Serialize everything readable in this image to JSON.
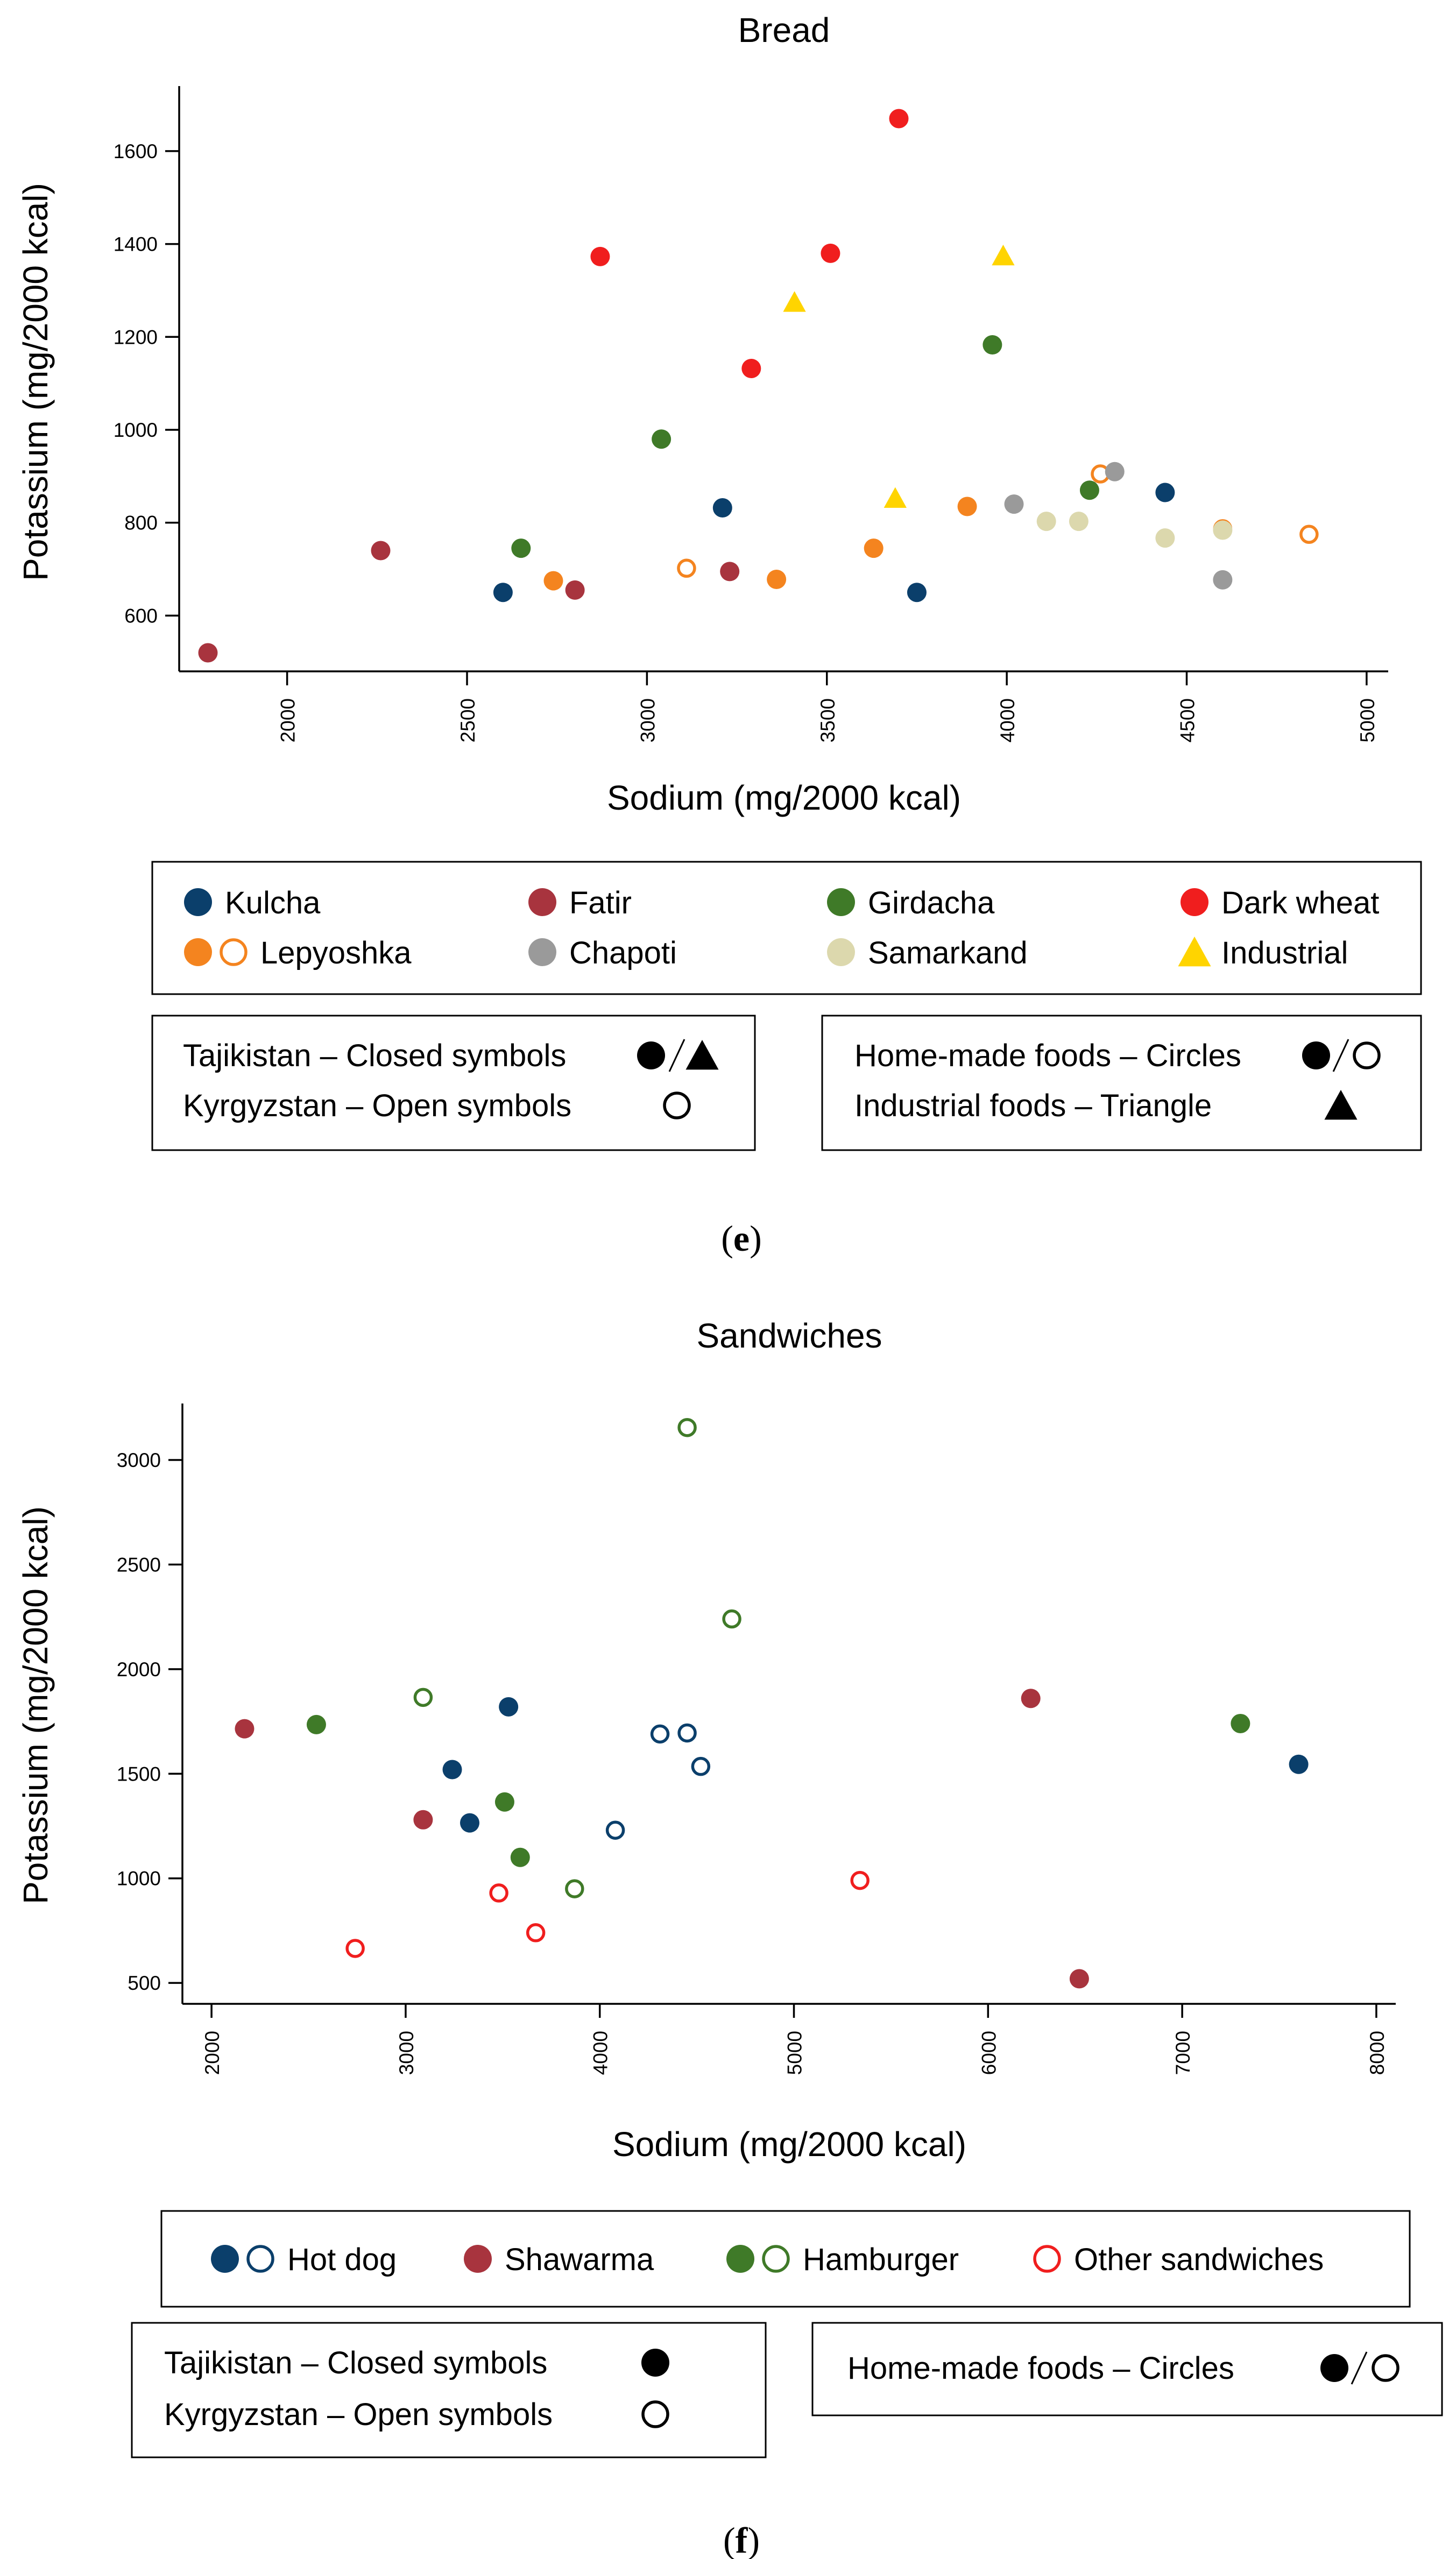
{
  "colors": {
    "kulcha": "#0b3f6b",
    "fatir": "#a8343e",
    "girdacha": "#3f7a28",
    "dark_wheat": "#f01e1e",
    "lepyoshka": "#f4841f",
    "chapoti": "#9a9a9a",
    "samarkand": "#dcd8ad",
    "industrial": "#ffd400",
    "hot_dog": "#0b3f6b",
    "shawarma": "#a8343e",
    "hamburger": "#3f7a28",
    "other": "#f01e1e"
  },
  "chart_data": [
    {
      "type": "scatter",
      "panel_label": "e",
      "title": "Bread",
      "xlabel": "Sodium (mg/2000 kcal)",
      "ylabel": "Potassium (mg/2000 kcal)",
      "xlim": [
        1700,
        5060
      ],
      "ylim": [
        480,
        1740
      ],
      "xticks": [
        "2000",
        "2500",
        "3000",
        "3500",
        "4000",
        "4500",
        "5000"
      ],
      "yticks": [
        "600",
        "800",
        "1000",
        "1200",
        "1400",
        "1600"
      ],
      "legend": [
        {
          "key": "kulcha",
          "label": "Kulcha",
          "symbols": [
            "closed-circle"
          ]
        },
        {
          "key": "fatir",
          "label": "Fatir",
          "symbols": [
            "closed-circle"
          ]
        },
        {
          "key": "girdacha",
          "label": "Girdacha",
          "symbols": [
            "closed-circle"
          ]
        },
        {
          "key": "dark_wheat",
          "label": "Dark wheat",
          "symbols": [
            "closed-circle"
          ]
        },
        {
          "key": "lepyoshka",
          "label": "Lepyoshka",
          "symbols": [
            "closed-circle",
            "open-circle"
          ]
        },
        {
          "key": "chapoti",
          "label": "Chapoti",
          "symbols": [
            "closed-circle"
          ]
        },
        {
          "key": "samarkand",
          "label": "Samarkand",
          "symbols": [
            "closed-circle"
          ]
        },
        {
          "key": "industrial",
          "label": "Industrial",
          "symbols": [
            "closed-triangle"
          ]
        }
      ],
      "notes": {
        "left": [
          {
            "text": "Tajikistan – Closed symbols",
            "symbols": [
              "closed-circle",
              "slash",
              "closed-triangle"
            ]
          },
          {
            "text": "Kyrgyzstan – Open symbols",
            "symbols": [
              "open-circle"
            ]
          }
        ],
        "right": [
          {
            "text": "Home-made foods – Circles",
            "symbols": [
              "closed-circle",
              "slash",
              "open-circle"
            ]
          },
          {
            "text": "Industrial foods – Triangle",
            "symbols": [
              "closed-triangle"
            ]
          }
        ]
      },
      "series": [
        {
          "name": "Kulcha",
          "key": "kulcha",
          "marker": "circle",
          "open": false,
          "points": [
            [
              2600,
              650
            ],
            [
              3210,
              832
            ],
            [
              3750,
              650
            ],
            [
              4440,
              865
            ]
          ]
        },
        {
          "name": "Fatir",
          "key": "fatir",
          "marker": "circle",
          "open": false,
          "points": [
            [
              1780,
              520
            ],
            [
              2260,
              740
            ],
            [
              2800,
              655
            ],
            [
              3230,
              695
            ]
          ]
        },
        {
          "name": "Girdacha",
          "key": "girdacha",
          "marker": "circle",
          "open": false,
          "points": [
            [
              2650,
              745
            ],
            [
              3040,
              980
            ],
            [
              3960,
              1183
            ],
            [
              4230,
              870
            ]
          ]
        },
        {
          "name": "Dark wheat",
          "key": "dark_wheat",
          "marker": "circle",
          "open": false,
          "points": [
            [
              2870,
              1373
            ],
            [
              3290,
              1132
            ],
            [
              3510,
              1380
            ],
            [
              3700,
              1670
            ]
          ]
        },
        {
          "name": "Lepyoshka (Tajikistan)",
          "key": "lepyoshka",
          "marker": "circle",
          "open": false,
          "points": [
            [
              2740,
              675
            ],
            [
              3360,
              678
            ],
            [
              3630,
              745
            ],
            [
              3890,
              835
            ]
          ]
        },
        {
          "name": "Lepyoshka (Kyrgyzstan)",
          "key": "lepyoshka",
          "marker": "circle",
          "open": true,
          "points": [
            [
              3110,
              702
            ],
            [
              4260,
              905
            ],
            [
              4600,
              787
            ],
            [
              4840,
              775
            ]
          ]
        },
        {
          "name": "Chapoti",
          "key": "chapoti",
          "marker": "circle",
          "open": false,
          "points": [
            [
              4020,
              840
            ],
            [
              4300,
              910
            ],
            [
              4600,
              677
            ]
          ]
        },
        {
          "name": "Samarkand",
          "key": "samarkand",
          "marker": "circle",
          "open": false,
          "points": [
            [
              4110,
              803
            ],
            [
              4200,
              803
            ],
            [
              4440,
              767
            ],
            [
              4600,
              784
            ]
          ]
        },
        {
          "name": "Industrial",
          "key": "industrial",
          "marker": "triangle",
          "open": false,
          "points": [
            [
              3410,
              1272
            ],
            [
              3690,
              850
            ],
            [
              3990,
              1372
            ]
          ]
        }
      ]
    },
    {
      "type": "scatter",
      "panel_label": "f",
      "title": "Sandwiches",
      "xlabel": "Sodium (mg/2000 kcal)",
      "ylabel": "Potassium (mg/2000 kcal)",
      "xlim": [
        1850,
        8100
      ],
      "ylim": [
        400,
        3270
      ],
      "xticks": [
        "2000",
        "3000",
        "4000",
        "5000",
        "6000",
        "7000",
        "8000"
      ],
      "yticks": [
        "500",
        "1000",
        "1500",
        "2000",
        "2500",
        "3000"
      ],
      "legend": [
        {
          "key": "hot_dog",
          "label": "Hot dog",
          "symbols": [
            "closed-circle",
            "open-circle"
          ]
        },
        {
          "key": "shawarma",
          "label": "Shawarma",
          "symbols": [
            "closed-circle"
          ]
        },
        {
          "key": "hamburger",
          "label": "Hamburger",
          "symbols": [
            "closed-circle",
            "open-circle"
          ]
        },
        {
          "key": "other",
          "label": "Other sandwiches",
          "symbols": [
            "open-circle"
          ]
        }
      ],
      "notes": {
        "left": [
          {
            "text": "Tajikistan – Closed symbols",
            "symbols": [
              "closed-circle"
            ]
          },
          {
            "text": "Kyrgyzstan – Open symbols",
            "symbols": [
              "open-circle"
            ]
          }
        ],
        "right": [
          {
            "text": "Home-made foods – Circles",
            "symbols": [
              "closed-circle",
              "slash",
              "open-circle"
            ]
          }
        ]
      },
      "series": [
        {
          "name": "Hot dog (Tajikistan)",
          "key": "hot_dog",
          "marker": "circle",
          "open": false,
          "points": [
            [
              3240,
              1520
            ],
            [
              3330,
              1265
            ],
            [
              3530,
              1820
            ],
            [
              7600,
              1545
            ]
          ]
        },
        {
          "name": "Hot dog (Kyrgyzstan)",
          "key": "hot_dog",
          "marker": "circle",
          "open": true,
          "points": [
            [
              4080,
              1230
            ],
            [
              4310,
              1690
            ],
            [
              4450,
              1695
            ],
            [
              4520,
              1535
            ]
          ]
        },
        {
          "name": "Shawarma",
          "key": "shawarma",
          "marker": "circle",
          "open": false,
          "points": [
            [
              2170,
              1715
            ],
            [
              3090,
              1280
            ],
            [
              6220,
              1860
            ],
            [
              6470,
              520
            ]
          ]
        },
        {
          "name": "Hamburger (Tajikistan)",
          "key": "hamburger",
          "marker": "circle",
          "open": false,
          "points": [
            [
              2540,
              1735
            ],
            [
              3510,
              1365
            ],
            [
              3590,
              1100
            ],
            [
              7300,
              1740
            ]
          ]
        },
        {
          "name": "Hamburger (Kyrgyzstan)",
          "key": "hamburger",
          "marker": "circle",
          "open": true,
          "points": [
            [
              3090,
              1865
            ],
            [
              3870,
              950
            ],
            [
              4450,
              3155
            ],
            [
              4680,
              2240
            ]
          ]
        },
        {
          "name": "Other sandwiches",
          "key": "other",
          "marker": "circle",
          "open": true,
          "points": [
            [
              2740,
              665
            ],
            [
              3480,
              930
            ],
            [
              3670,
              740
            ],
            [
              5340,
              990
            ]
          ]
        }
      ]
    }
  ]
}
